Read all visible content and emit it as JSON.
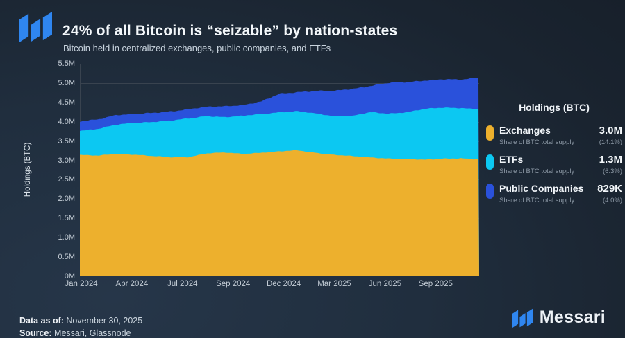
{
  "header": {
    "title": "24% of all Bitcoin is “seizable” by nation-states",
    "subtitle": "Bitcoin held in centralized exchanges, public companies, and ETFs"
  },
  "legend": {
    "title": "Holdings (BTC)",
    "items": [
      {
        "id": "exchanges",
        "label": "Exchanges",
        "sublabel": "Share of BTC total supply",
        "value": "3.0M",
        "share": "(14.1%)",
        "color": "#EDB02D"
      },
      {
        "id": "etfs",
        "label": "ETFs",
        "sublabel": "Share of BTC total supply",
        "value": "1.3M",
        "share": "(6.3%)",
        "color": "#0CC8F2"
      },
      {
        "id": "public-companies",
        "label": "Public Companies",
        "sublabel": "Share of BTC total supply",
        "value": "829K",
        "share": "(4.0%)",
        "color": "#2A51DB"
      }
    ]
  },
  "chart_data": {
    "type": "area",
    "stacked": true,
    "title": "24% of all Bitcoin is “seizable” by nation-states",
    "xlabel": "",
    "ylabel": "Holdings (BTC)",
    "unit": "millions of BTC",
    "ylim": [
      0,
      5.5
    ],
    "grid": true,
    "legend_position": "right",
    "y_tick_step": 0.5,
    "y_tick_suffix": "M",
    "x_ticks": [
      "Jan 2024",
      "Apr 2024",
      "Jul 2024",
      "Sep 2024",
      "Dec 2024",
      "Mar 2025",
      "Jun 2025",
      "Sep 2025"
    ],
    "x": [
      "Jan 2024",
      "Feb 2024",
      "Mar 2024",
      "Apr 2024",
      "May 2024",
      "Jun 2024",
      "Jul 2024",
      "Aug 2024",
      "Sep 2024",
      "Oct 2024",
      "Nov 2024",
      "Dec 2024",
      "Jan 2025",
      "Feb 2025",
      "Mar 2025",
      "Apr 2025",
      "May 2025",
      "Jun 2025",
      "Jul 2025",
      "Aug 2025",
      "Sep 2025",
      "Oct 2025",
      "Nov 2025"
    ],
    "series": [
      {
        "name": "Exchanges",
        "color": "#EDB02D",
        "values": [
          3.14,
          3.12,
          3.17,
          3.15,
          3.11,
          3.08,
          3.09,
          3.18,
          3.2,
          3.17,
          3.2,
          3.23,
          3.26,
          3.2,
          3.14,
          3.11,
          3.08,
          3.05,
          3.03,
          3.02,
          3.05,
          3.05,
          3.02
        ]
      },
      {
        "name": "ETFs",
        "color": "#0CC8F2",
        "values": [
          0.63,
          0.7,
          0.75,
          0.82,
          0.89,
          0.95,
          0.99,
          0.97,
          0.92,
          0.98,
          1.0,
          1.02,
          1.01,
          1.01,
          1.01,
          1.04,
          1.16,
          1.16,
          1.22,
          1.31,
          1.31,
          1.31,
          1.3
        ]
      },
      {
        "name": "Public Companies",
        "color": "#2A51DB",
        "values": [
          0.23,
          0.24,
          0.26,
          0.23,
          0.22,
          0.24,
          0.25,
          0.23,
          0.28,
          0.29,
          0.32,
          0.47,
          0.5,
          0.59,
          0.64,
          0.7,
          0.69,
          0.79,
          0.77,
          0.74,
          0.74,
          0.72,
          0.83
        ]
      }
    ]
  },
  "footer": {
    "data_as_of_label": "Data as of:",
    "data_as_of": "November 30, 2025",
    "source_label": "Source:",
    "source": "Messari, Glassnode",
    "brand": "Messari"
  },
  "colors": {
    "logo_blue": "#2F86F0",
    "grid": "#39434F",
    "background_dark": "#1A2430"
  }
}
